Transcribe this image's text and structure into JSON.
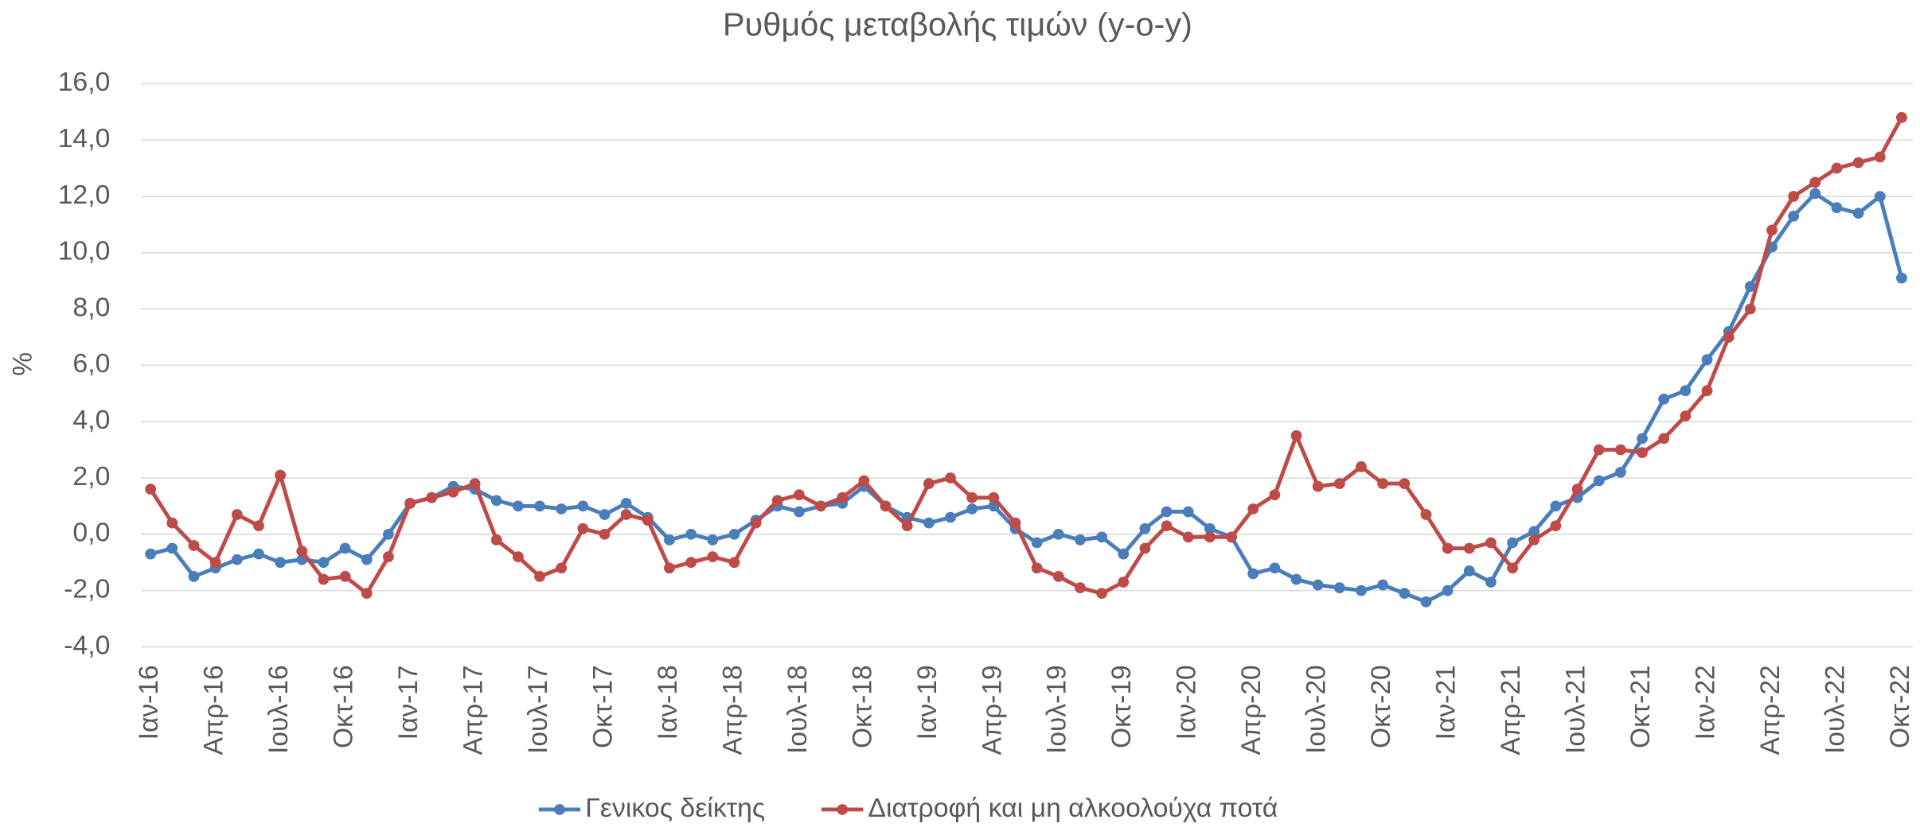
{
  "chart_data": {
    "type": "line",
    "title": "Ρυθμός μεταβολής τιμών (y-o-y)",
    "ylabel": "%",
    "categories": [
      "Ιαν-16",
      null,
      null,
      "Απρ-16",
      null,
      null,
      "Ιουλ-16",
      null,
      null,
      "Οκτ-16",
      null,
      null,
      "Ιαν-17",
      null,
      null,
      "Απρ-17",
      null,
      null,
      "Ιουλ-17",
      null,
      null,
      "Οκτ-17",
      null,
      null,
      "Ιαν-18",
      null,
      null,
      "Απρ-18",
      null,
      null,
      "Ιουλ-18",
      null,
      null,
      "Οκτ-18",
      null,
      null,
      "Ιαν-19",
      null,
      null,
      "Απρ-19",
      null,
      null,
      "Ιουλ-19",
      null,
      null,
      "Οκτ-19",
      null,
      null,
      "Ιαν-20",
      null,
      null,
      "Απρ-20",
      null,
      null,
      "Ιουλ-20",
      null,
      null,
      "Οκτ-20",
      null,
      null,
      "Ιαν-21",
      null,
      null,
      "Απρ-21",
      null,
      null,
      "Ιουλ-21",
      null,
      null,
      "Οκτ-21",
      null,
      null,
      "Ιαν-22",
      null,
      null,
      "Απρ-22",
      null,
      null,
      "Ιουλ-22",
      null,
      null,
      "Οκτ-22"
    ],
    "series": [
      {
        "name": "Γενικος δείκτης",
        "color": "#4a7ebb",
        "values": [
          -0.7,
          -0.5,
          -1.5,
          -1.2,
          -0.9,
          -0.7,
          -1.0,
          -0.9,
          -1.0,
          -0.5,
          -0.9,
          0.0,
          1.1,
          1.3,
          1.7,
          1.6,
          1.2,
          1.0,
          1.0,
          0.9,
          1.0,
          0.7,
          1.1,
          0.6,
          -0.2,
          0.0,
          -0.2,
          0.0,
          0.5,
          1.0,
          0.8,
          1.0,
          1.1,
          1.7,
          1.0,
          0.6,
          0.4,
          0.6,
          0.9,
          1.0,
          0.2,
          -0.3,
          0.0,
          -0.2,
          -0.1,
          -0.7,
          0.2,
          0.8,
          0.8,
          0.2,
          -0.1,
          -1.4,
          -1.2,
          -1.6,
          -1.8,
          -1.9,
          -2.0,
          -1.8,
          -2.1,
          -2.4,
          -2.0,
          -1.3,
          -1.7,
          -0.3,
          0.1,
          1.0,
          1.3,
          1.9,
          2.2,
          3.4,
          4.8,
          5.1,
          6.2,
          7.2,
          8.8,
          10.2,
          11.3,
          12.1,
          11.6,
          11.4,
          12.0,
          9.1
        ]
      },
      {
        "name": "Διατροφή και μη αλκοολούχα ποτά",
        "color": "#be4b48",
        "values": [
          1.6,
          0.4,
          -0.4,
          -1.0,
          0.7,
          0.3,
          2.1,
          -0.6,
          -1.6,
          -1.5,
          -2.1,
          -0.8,
          1.1,
          1.3,
          1.5,
          1.8,
          -0.2,
          -0.8,
          -1.5,
          -1.2,
          0.2,
          0.0,
          0.7,
          0.5,
          -1.2,
          -1.0,
          -0.8,
          -1.0,
          0.4,
          1.2,
          1.4,
          1.0,
          1.3,
          1.9,
          1.0,
          0.3,
          1.8,
          2.0,
          1.3,
          1.3,
          0.4,
          -1.2,
          -1.5,
          -1.9,
          -2.1,
          -1.7,
          -0.5,
          0.3,
          -0.1,
          -0.1,
          -0.1,
          0.9,
          1.4,
          3.5,
          1.7,
          1.8,
          2.4,
          1.8,
          1.8,
          0.7,
          -0.5,
          -0.5,
          -0.3,
          -1.2,
          -0.2,
          0.3,
          1.6,
          3.0,
          3.0,
          2.9,
          3.4,
          4.2,
          5.1,
          7.0,
          8.0,
          10.8,
          12.0,
          12.5,
          13.0,
          13.2,
          13.4,
          14.8
        ]
      }
    ],
    "ylim": [
      -4,
      16
    ],
    "yticks": [
      {
        "value": -4,
        "label": "-4,0"
      },
      {
        "value": -2,
        "label": "-2,0"
      },
      {
        "value": 0,
        "label": "0,0"
      },
      {
        "value": 2,
        "label": "2,0"
      },
      {
        "value": 4,
        "label": "4,0"
      },
      {
        "value": 6,
        "label": "6,0"
      },
      {
        "value": 8,
        "label": "8,0"
      },
      {
        "value": 10,
        "label": "10,0"
      },
      {
        "value": 12,
        "label": "12,0"
      },
      {
        "value": 14,
        "label": "14,0"
      },
      {
        "value": 16,
        "label": "16,0"
      }
    ],
    "grid": true,
    "legend": "bottom"
  }
}
